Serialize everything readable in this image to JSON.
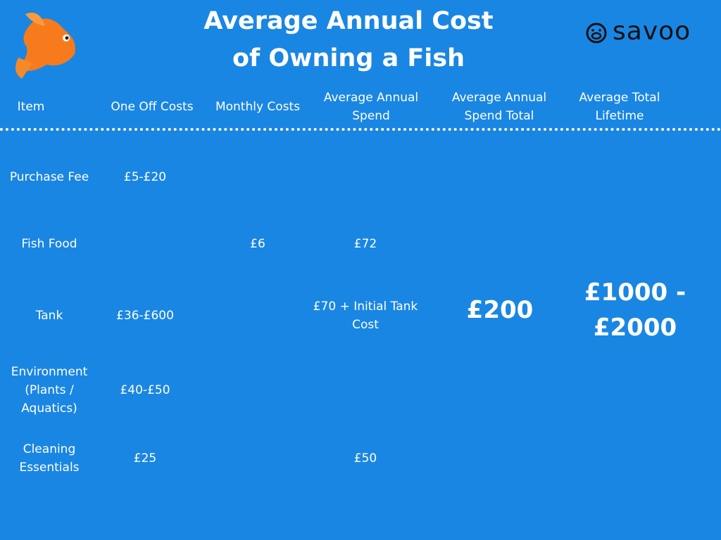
{
  "header": {
    "title_lines": [
      "Average Annual Cost",
      "of Owning a Fish"
    ],
    "logo": "savoo"
  },
  "table": {
    "columns": {
      "item": "Item",
      "one_off": "One Off Costs",
      "monthly": "Monthly Costs",
      "annual": "Average Annual Spend",
      "annual_total": "Average Annual Spend Total",
      "lifetime": "Average Total Lifetime"
    },
    "rows": [
      {
        "item": "Purchase Fee",
        "one_off": "£5-£20"
      },
      {
        "item": "Fish Food",
        "monthly": "£6",
        "annual": "£72"
      },
      {
        "item": "Tank",
        "one_off": "£36-£600",
        "annual": "£70 + Initial Tank Cost"
      },
      {
        "item": "Environment (Plants / Aquatics)",
        "one_off": "£40-£50"
      },
      {
        "item": "Cleaning Essentials",
        "one_off": "£25",
        "annual": "£50"
      }
    ],
    "annual_total": "£200",
    "lifetime": "£1000 - £2000"
  }
}
